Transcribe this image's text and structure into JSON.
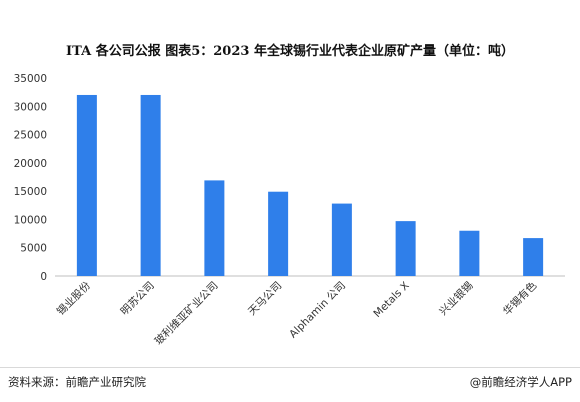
{
  "chart_data": {
    "type": "bar",
    "title": "ITA 各公司公报  图表5：2023 年全球锡行业代表企业原矿产量（单位：吨）",
    "categories": [
      "锡业股份",
      "明苏公司",
      "玻利维亚矿业公司",
      "天马公司",
      "Alphamin 公司",
      "Metals X",
      "兴业银锡",
      "华锡有色"
    ],
    "values": [
      32000,
      32000,
      16900,
      14900,
      12800,
      9700,
      8000,
      6700
    ],
    "ylim": [
      0,
      35000
    ],
    "yticks": [
      0,
      5000,
      10000,
      15000,
      20000,
      25000,
      30000,
      35000
    ],
    "grid": false,
    "bar_color": "#2f7fea"
  },
  "footer": {
    "source": "资料来源：前瞻产业研究院",
    "brand": "@前瞻经济学人APP"
  }
}
